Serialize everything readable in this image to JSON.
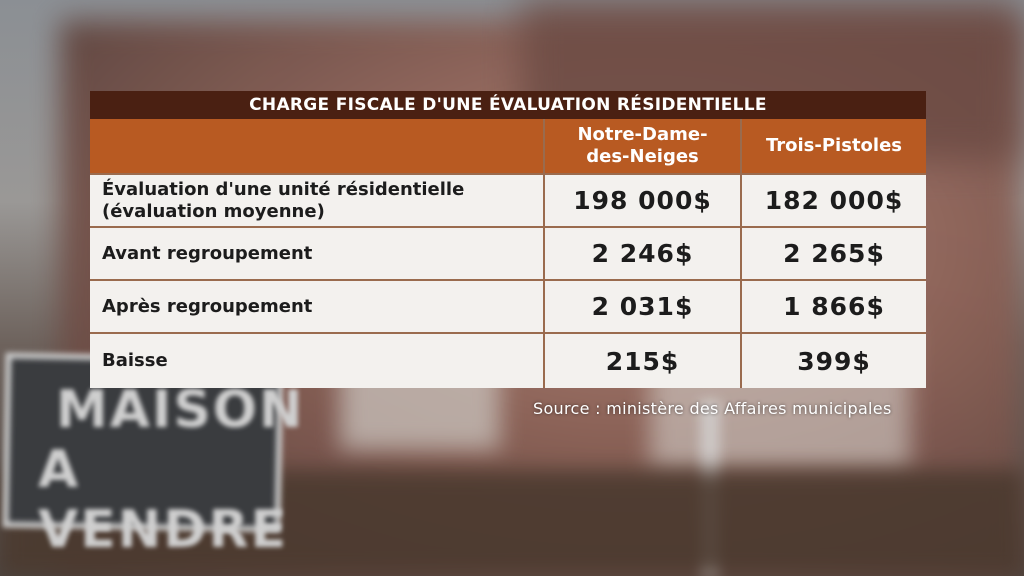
{
  "sign": {
    "line1": "MAISON",
    "line2": "A VENDRE"
  },
  "table": {
    "title": "CHARGE FISCALE D'UNE ÉVALUATION RÉSIDENTIELLE",
    "columns": [
      "",
      "Notre-Dame-des-Neiges",
      "Trois-Pistoles"
    ],
    "column_lines": {
      "col1_line1": "Notre-Dame-",
      "col1_line2": "des-Neiges"
    },
    "rows": [
      {
        "label_line1": "Évaluation d'une unité résidentielle",
        "label_line2": "(évaluation moyenne)",
        "values": [
          "198 000$",
          "182 000$"
        ]
      },
      {
        "label_line1": "Avant regroupement",
        "values": [
          "2 246$",
          "2 265$"
        ]
      },
      {
        "label_line1": "Après regroupement",
        "values": [
          "2 031$",
          "1 866$"
        ]
      },
      {
        "label_line1": "Baisse",
        "values": [
          "215$",
          "399$"
        ]
      }
    ]
  },
  "source": "Source :  ministère des Affaires municipales",
  "colors": {
    "title_bar": "#4a2012",
    "header": "#b85a22",
    "cell_bg": "#f3f1ee",
    "border": "#9a6b4e"
  }
}
